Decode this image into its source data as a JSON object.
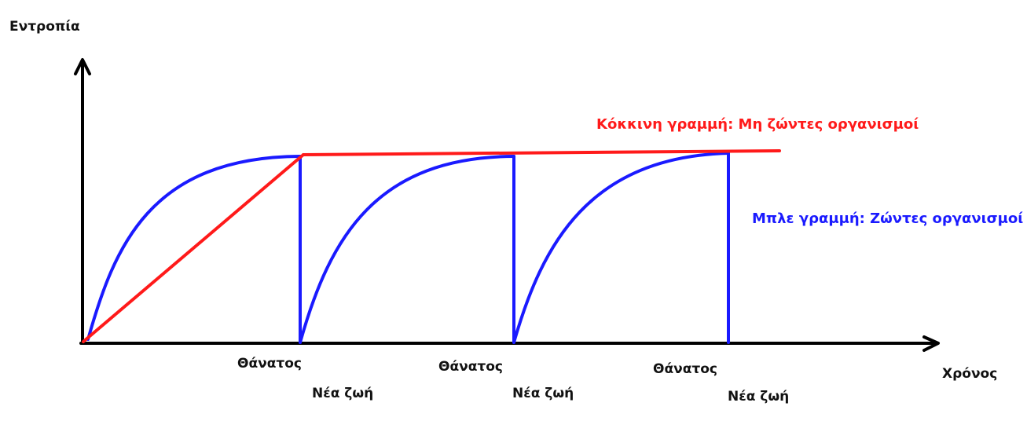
{
  "axes": {
    "y_label": "Εντροπία",
    "x_label": "Χρόνος"
  },
  "legend": {
    "red": {
      "text": "Κόκκινη γραμμή: Μη ζώντες οργανισμοί",
      "color": "#ff0000"
    },
    "blue": {
      "text": "Μπλε γραμμή: Ζώντες οργανισμοί",
      "color": "#0000ff"
    }
  },
  "events": [
    {
      "death": "Θάνατος",
      "new_life": "Νέα ζωή"
    },
    {
      "death": "Θάνατος",
      "new_life": "Νέα ζωή"
    },
    {
      "death": "Θάνατος",
      "new_life": "Νέα ζωή"
    }
  ],
  "colors": {
    "axis": "#000000",
    "red_line": "#ff1a1a",
    "blue_line": "#1a1aff"
  }
}
